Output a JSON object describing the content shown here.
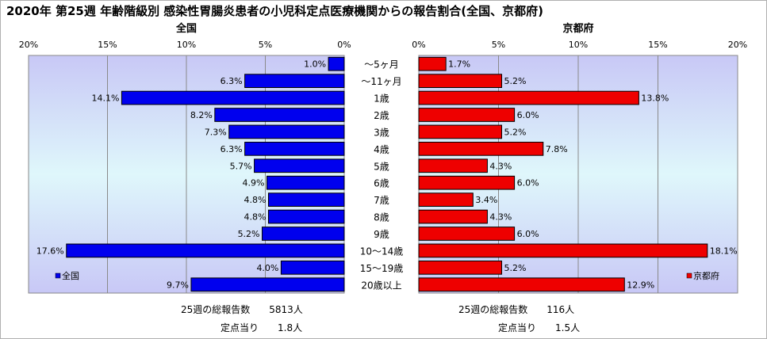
{
  "chart_data": {
    "type": "bar",
    "orientation": "horizontal-butterfly",
    "title": "2020年 第25週 年齢階級別 感染性胃腸炎患者の小児科定点医療機関からの報告割合(全国、京都府)",
    "categories": [
      "～5ヶ月",
      "～11ヶ月",
      "1歳",
      "2歳",
      "3歳",
      "4歳",
      "5歳",
      "6歳",
      "7歳",
      "8歳",
      "9歳",
      "10～14歳",
      "15～19歳",
      "20歳以上"
    ],
    "xlim": [
      0,
      20
    ],
    "x_ticks": [
      "0%",
      "5%",
      "10%",
      "15%",
      "20%"
    ],
    "grid": true,
    "series": [
      {
        "name": "全国",
        "panel_title": "全国",
        "color": "#0000ee",
        "values": [
          1.0,
          6.3,
          14.1,
          8.2,
          7.3,
          6.3,
          5.7,
          4.9,
          4.8,
          4.8,
          5.2,
          17.6,
          4.0,
          9.7
        ],
        "value_labels": [
          "1.0%",
          "6.3%",
          "14.1%",
          "8.2%",
          "7.3%",
          "6.3%",
          "5.7%",
          "4.9%",
          "4.8%",
          "4.8%",
          "5.2%",
          "17.6%",
          "4.0%",
          "9.7%"
        ],
        "legend": "全国",
        "legend_position": "bottom-left",
        "footer": [
          "25週の総報告数　　5813人",
          "定点当り　　1.8人"
        ]
      },
      {
        "name": "京都府",
        "panel_title": "京都府",
        "color": "#ee0000",
        "values": [
          1.7,
          5.2,
          13.8,
          6.0,
          5.2,
          7.8,
          4.3,
          6.0,
          3.4,
          4.3,
          6.0,
          18.1,
          5.2,
          12.9
        ],
        "value_labels": [
          "1.7%",
          "5.2%",
          "13.8%",
          "6.0%",
          "5.2%",
          "7.8%",
          "4.3%",
          "6.0%",
          "3.4%",
          "4.3%",
          "6.0%",
          "18.1%",
          "5.2%",
          "12.9%"
        ],
        "legend": "京都府",
        "legend_position": "bottom-right",
        "footer": [
          "25週の総報告数　　116人",
          "定点当り　　1.5人"
        ]
      }
    ]
  }
}
